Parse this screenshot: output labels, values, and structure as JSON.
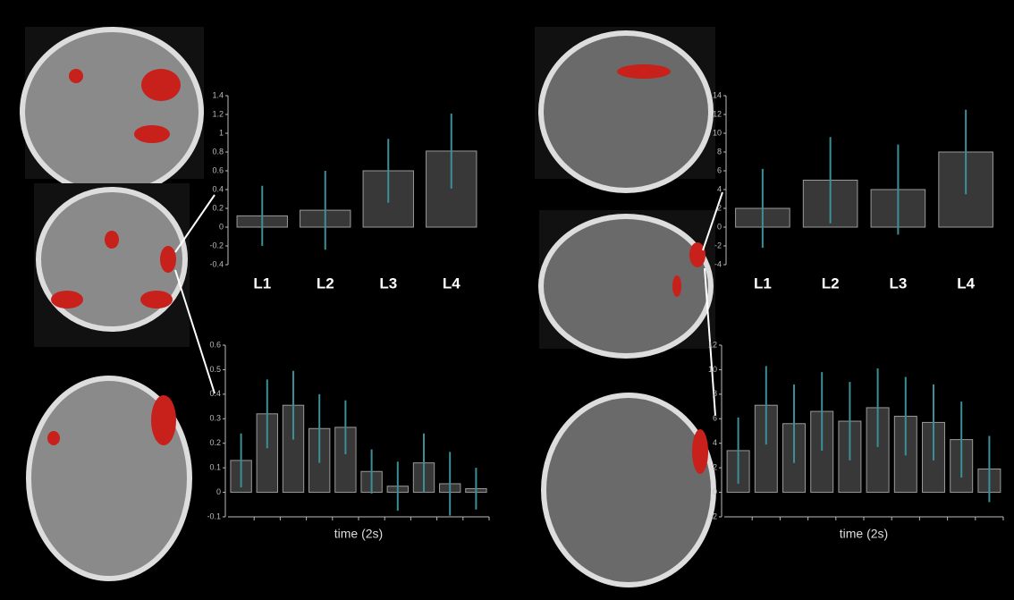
{
  "chart_data": [
    {
      "type": "bar",
      "categories": [
        "L1",
        "L2",
        "L3",
        "L4"
      ],
      "values": [
        0.12,
        0.18,
        0.6,
        0.81
      ],
      "errors": [
        0.32,
        0.42,
        0.34,
        0.4
      ],
      "color": "#383838",
      "error_color": "#3a8f98",
      "ylim": [
        -0.4,
        1.4
      ],
      "yticks": [
        -0.4,
        -0.2,
        0,
        0.2,
        0.4,
        0.6,
        0.8,
        1,
        1.2,
        1.4
      ]
    },
    {
      "type": "bar",
      "categories": [
        "L1",
        "L2",
        "L3",
        "L4"
      ],
      "values": [
        2,
        5,
        4,
        8
      ],
      "errors": [
        4.2,
        4.6,
        4.8,
        4.5
      ],
      "color": "#383838",
      "error_color": "#3a8f98",
      "ylim": [
        -4,
        14
      ],
      "yticks": [
        -4,
        -2,
        0,
        2,
        4,
        6,
        8,
        10,
        12,
        14
      ]
    },
    {
      "type": "bar",
      "categories": [
        null,
        null,
        null,
        null,
        null,
        null,
        null,
        null,
        null,
        null
      ],
      "values": [
        0.13,
        0.32,
        0.355,
        0.26,
        0.265,
        0.085,
        0.025,
        0.12,
        0.035,
        0.015
      ],
      "errors": [
        0.11,
        0.14,
        0.14,
        0.14,
        0.11,
        0.09,
        0.1,
        0.12,
        0.13,
        0.085
      ],
      "color": "#383838",
      "error_color": "#3a8f98",
      "ylim": [
        -0.1,
        0.6
      ],
      "yticks": [
        -0.1,
        0,
        0.1,
        0.2,
        0.3,
        0.4,
        0.5,
        0.6
      ],
      "x_label": "time (2s)"
    },
    {
      "type": "bar",
      "categories": [
        null,
        null,
        null,
        null,
        null,
        null,
        null,
        null,
        null,
        null
      ],
      "values": [
        3.4,
        7.1,
        5.6,
        6.6,
        5.8,
        6.9,
        6.2,
        5.7,
        4.3,
        1.9
      ],
      "errors": [
        2.7,
        3.2,
        3.2,
        3.2,
        3.2,
        3.2,
        3.2,
        3.1,
        3.1,
        2.7
      ],
      "color": "#383838",
      "error_color": "#3a8f98",
      "ylim": [
        -2,
        12
      ],
      "yticks": [
        -2,
        0,
        2,
        4,
        6,
        8,
        10,
        12
      ],
      "x_label": "time (2s)"
    }
  ]
}
